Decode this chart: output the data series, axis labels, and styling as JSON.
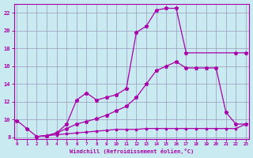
{
  "xlabel": "Windchill (Refroidissement éolien,°C)",
  "xlim": [
    -0.3,
    23.3
  ],
  "ylim": [
    7.8,
    23.0
  ],
  "yticks": [
    8,
    10,
    12,
    14,
    16,
    18,
    20,
    22
  ],
  "xticks": [
    0,
    1,
    2,
    3,
    4,
    5,
    6,
    7,
    8,
    9,
    10,
    11,
    12,
    13,
    14,
    15,
    16,
    17,
    18,
    19,
    20,
    21,
    22,
    23
  ],
  "bg_color": "#c8eaf0",
  "grid_color": "#9999bb",
  "line_color": "#aa00aa",
  "line1_x": [
    0,
    1,
    2,
    3,
    4,
    5,
    6,
    7,
    8,
    9,
    10,
    11,
    12,
    13,
    14,
    15,
    16,
    17,
    22,
    23
  ],
  "line1_y": [
    9.9,
    9.0,
    8.1,
    8.2,
    8.5,
    9.5,
    12.2,
    13.0,
    12.2,
    12.5,
    12.8,
    13.5,
    19.8,
    20.5,
    22.3,
    22.5,
    22.5,
    17.5,
    17.5,
    17.5
  ],
  "line2_x": [
    2,
    3,
    4,
    5,
    6,
    7,
    8,
    9,
    10,
    11,
    12,
    13,
    14,
    15,
    16,
    17,
    18,
    19,
    20,
    21,
    22,
    23
  ],
  "line2_y": [
    8.1,
    8.2,
    8.5,
    9.0,
    9.5,
    9.8,
    10.1,
    10.5,
    11.0,
    11.5,
    12.5,
    14.0,
    15.5,
    16.0,
    16.5,
    15.8,
    15.8,
    15.8,
    15.8,
    10.8,
    9.5,
    9.5
  ],
  "line3_x": [
    2,
    3,
    4,
    5,
    6,
    7,
    8,
    9,
    10,
    11,
    12,
    13,
    14,
    15,
    16,
    17,
    18,
    19,
    20,
    21,
    22,
    23
  ],
  "line3_y": [
    8.1,
    8.2,
    8.3,
    8.4,
    8.5,
    8.6,
    8.7,
    8.8,
    8.9,
    8.9,
    8.9,
    9.0,
    9.0,
    9.0,
    9.0,
    9.0,
    9.0,
    9.0,
    9.0,
    9.0,
    9.0,
    9.5
  ]
}
